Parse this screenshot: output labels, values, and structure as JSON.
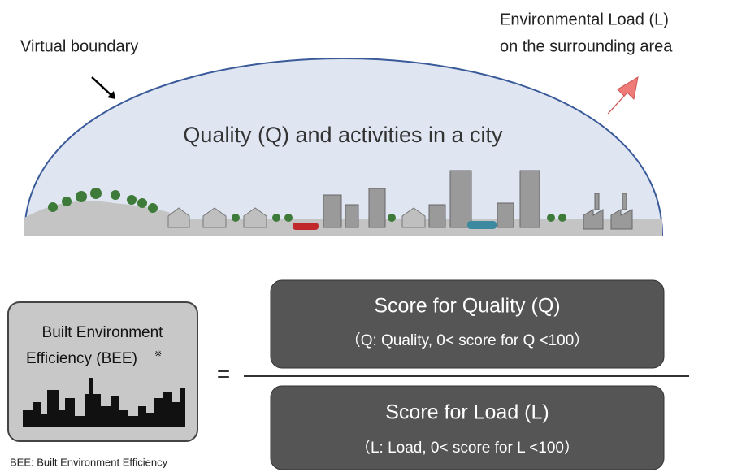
{
  "labels": {
    "virtual_boundary": "Virtual boundary",
    "load_line1": "Environmental Load (L)",
    "load_line2": "on the surrounding area",
    "quality": "Quality (Q) and activities in a city"
  },
  "bee_box": {
    "line1": "Built  Environment",
    "line2": "Efficiency (BEE)",
    "mark": "※"
  },
  "equals": "=",
  "numerator": {
    "title": "Score for Quality (Q)",
    "detail": "（Q: Quality,  0< score for Q <100）"
  },
  "denominator": {
    "title": "Score for Load (L)",
    "detail": "（L: Load,  0< score for L <100）"
  },
  "footnote": "BEE: Built Environment Efficiency"
}
